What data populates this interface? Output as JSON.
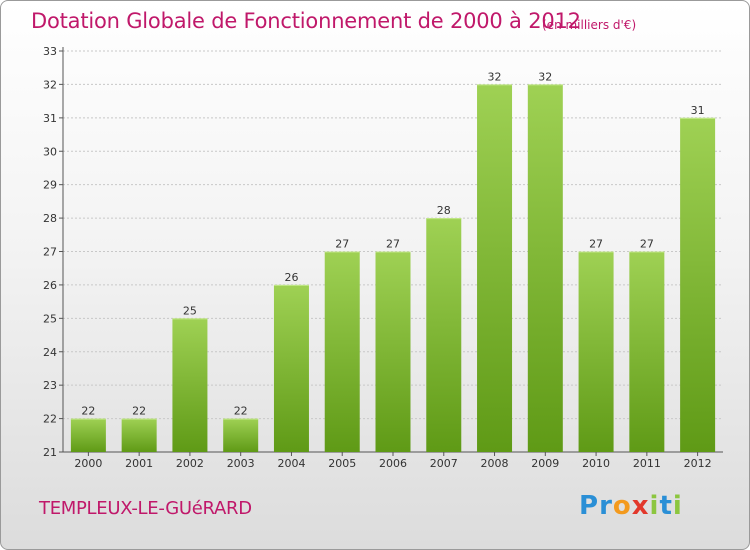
{
  "title": "Dotation Globale de Fonctionnement de 2000 à 2012",
  "subtitle": "(en milliers d'€)",
  "commune": "TEMPLEUX-LE-GUéRARD",
  "logo": {
    "letters": [
      {
        "ch": "P",
        "color": "#2a8fd6"
      },
      {
        "ch": "r",
        "color": "#2a8fd6"
      },
      {
        "ch": "o",
        "color": "#f39a1e"
      },
      {
        "ch": "x",
        "color": "#e2382b"
      },
      {
        "ch": "i",
        "color": "#8cc63f"
      },
      {
        "ch": "t",
        "color": "#2a8fd6"
      },
      {
        "ch": "i",
        "color": "#8cc63f"
      }
    ]
  },
  "colors": {
    "bar_top": "#9fd154",
    "bar_bottom": "#5f9a16",
    "title": "#c0186a",
    "grid": "#c8c8c8"
  },
  "chart_data": {
    "type": "bar",
    "title": "Dotation Globale de Fonctionnement de 2000 à 2012",
    "subtitle": "(en milliers d'€)",
    "categories": [
      "2000",
      "2001",
      "2002",
      "2003",
      "2004",
      "2005",
      "2006",
      "2007",
      "2008",
      "2009",
      "2010",
      "2011",
      "2012"
    ],
    "values": [
      22,
      22,
      25,
      22,
      26,
      27,
      27,
      28,
      32,
      32,
      27,
      27,
      31
    ],
    "ylim": [
      21,
      33
    ],
    "yticks": [
      21,
      22,
      23,
      24,
      25,
      26,
      27,
      28,
      29,
      30,
      31,
      32,
      33
    ],
    "grid": true,
    "data_labels": true
  }
}
